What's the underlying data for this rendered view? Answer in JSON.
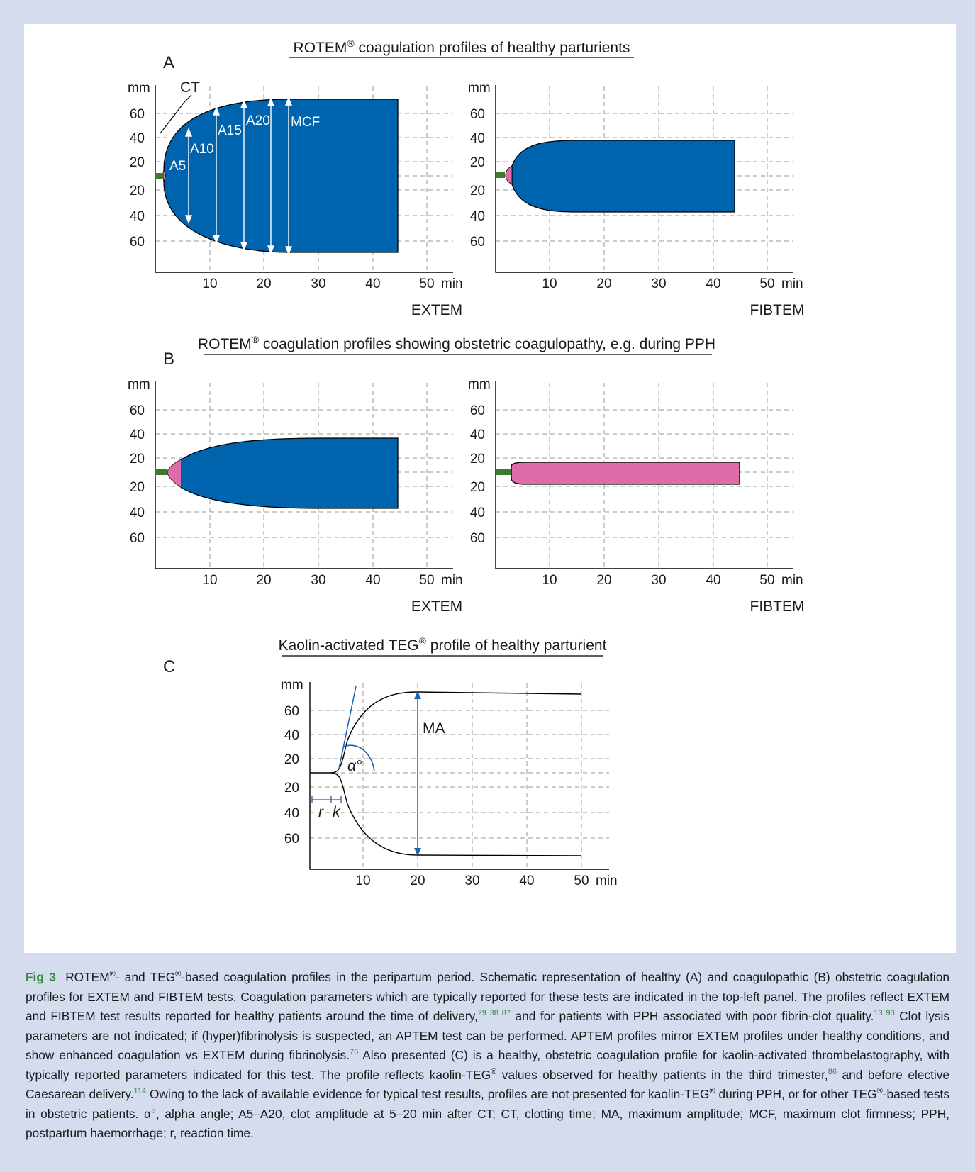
{
  "figure": {
    "panel_a": {
      "letter": "A",
      "title_prefix": "ROTEM",
      "title_suffix": " coagulation profiles of healthy parturients",
      "registered": "®",
      "left_label": "EXTEM",
      "right_label": "FIBTEM",
      "annotations": {
        "ct": "CT",
        "a5": "A5",
        "a10": "A10",
        "a15": "A15",
        "a20": "A20",
        "mcf": "MCF"
      }
    },
    "panel_b": {
      "letter": "B",
      "title_prefix": "ROTEM",
      "title_suffix": " coagulation profiles showing obstetric coagulopathy, e.g. during PPH",
      "registered": "®",
      "left_label": "EXTEM",
      "right_label": "FIBTEM"
    },
    "panel_c": {
      "letter": "C",
      "title_prefix": "Kaolin-activated TEG",
      "title_suffix": " profile of healthy parturient",
      "registered": "®",
      "annotations": {
        "ma": "MA",
        "alpha": "α°",
        "r": "r",
        "k": "k"
      }
    },
    "axes": {
      "y_unit": "mm",
      "x_unit": "min",
      "y_ticks_top": [
        "60",
        "40",
        "20"
      ],
      "y_ticks_bottom": [
        "20",
        "40",
        "60"
      ],
      "x_ticks": [
        "10",
        "20",
        "30",
        "40",
        "50"
      ]
    },
    "colors": {
      "blue": "#0063ad",
      "pink": "#de6ca9",
      "green": "#3c7a2e",
      "teg_blue": "#1565b0"
    }
  },
  "chart_data": [
    {
      "type": "area",
      "panel": "A",
      "title": "EXTEM",
      "xlabel": "min",
      "ylabel": "mm",
      "xlim": [
        0,
        50
      ],
      "ct_min": 1.5,
      "max_amplitude_mm": 68,
      "end_min": 44.5
    },
    {
      "type": "area",
      "panel": "A",
      "title": "FIBTEM",
      "xlabel": "min",
      "ylabel": "mm",
      "xlim": [
        0,
        50
      ],
      "ct_min": 3,
      "max_amplitude_mm": 38,
      "end_min": 43.5
    },
    {
      "type": "area",
      "panel": "B",
      "title": "EXTEM",
      "xlabel": "min",
      "ylabel": "mm",
      "xlim": [
        0,
        50
      ],
      "ct_min": 5,
      "max_amplitude_mm": 35,
      "end_min": 44.5
    },
    {
      "type": "area",
      "panel": "B",
      "title": "FIBTEM",
      "xlabel": "min",
      "ylabel": "mm",
      "xlim": [
        0,
        50
      ],
      "ct_min": 2,
      "max_amplitude_mm": 16,
      "end_min": 44.5
    },
    {
      "type": "line",
      "panel": "C",
      "xlabel": "min",
      "ylabel": "mm",
      "xlim": [
        0,
        50
      ],
      "r_min": 4,
      "k_min": 5,
      "ma_mm": 72
    }
  ],
  "caption": {
    "label": "Fig 3",
    "s1": " ROTEM",
    "s2": "- and TEG",
    "s3": "-based coagulation profiles in the peripartum period. Schematic representation of healthy (A) and coagulopathic (B) obstetric coagulation profiles for EXTEM and FIBTEM tests. Coagulation parameters which are typically reported for these tests are indicated in the top-left panel. The profiles reflect EXTEM and FIBTEM test results reported for healthy patients around the time of delivery,",
    "ref1": "29 38 87",
    "s4": " and for patients with PPH associated with poor fibrin-clot quality.",
    "ref2": "13 90",
    "s5": " Clot lysis parameters are not indicated; if (hyper)fibrinolysis is suspected, an APTEM test can be performed. APTEM profiles mirror EXTEM profiles under healthy conditions, and show enhanced coagulation vs EXTEM during fibrinolysis.",
    "ref3": "76",
    "s6": " Also presented (C) is a healthy, obstetric coagulation profile for kaolin-activated thrombelastography, with typically reported parameters indicated for this test. The profile reflects kaolin-TEG",
    "s7": " values observed for healthy patients in the third trimester,",
    "ref4": "86",
    "s8": " and before elective Caesarean delivery.",
    "ref5": "114",
    "s9": " Owing to the lack of available evidence for typical test results, profiles are not presented for kaolin-TEG",
    "s10": " during PPH, or for other TEG",
    "s11": "-based tests in obstetric patients. α°, alpha angle; A5–A20, clot amplitude at 5–20 min after CT; CT, clotting time; MA, maximum amplitude; MCF, maximum clot firmness; PPH, postpartum haemorrhage; r, reaction time.",
    "reg": "®"
  }
}
